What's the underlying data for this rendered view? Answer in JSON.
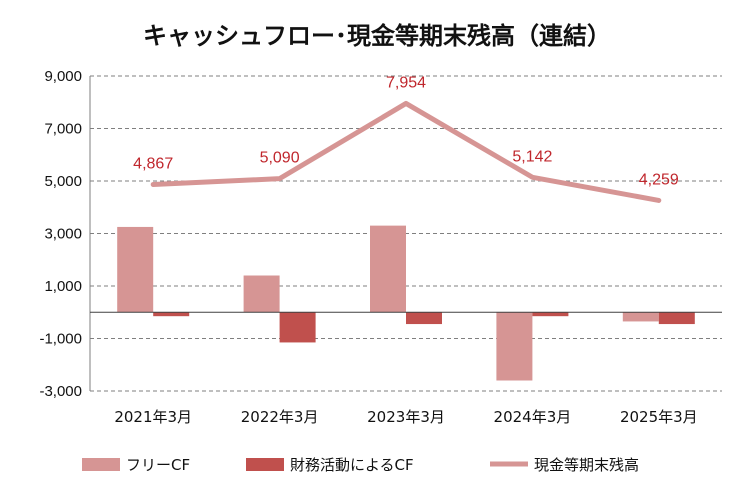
{
  "chart_data": {
    "type": "bar",
    "title": "キャッシュフロー･現金等期末残高（連結）",
    "categories": [
      "2021年3月",
      "2022年3月",
      "2023年3月",
      "2024年3月",
      "2025年3月"
    ],
    "series": [
      {
        "name": "フリーCF",
        "type": "bar",
        "color": "#d69594",
        "values": [
          3250,
          1400,
          3300,
          -2600,
          -350
        ]
      },
      {
        "name": "財務活動によるCF",
        "type": "bar",
        "color": "#c0504d",
        "values": [
          -150,
          -1150,
          -450,
          -150,
          -450
        ]
      },
      {
        "name": "現金等期末残高",
        "type": "line",
        "color": "#d69594",
        "values": [
          4867,
          5090,
          7954,
          5142,
          4259
        ]
      }
    ],
    "data_labels": [
      "4,867",
      "5,090",
      "7,954",
      "5,142",
      "4,259"
    ],
    "yticks": [
      "9,000",
      "7,000",
      "5,000",
      "3,000",
      "1,000",
      "-1,000",
      "-3,000"
    ],
    "ytick_values": [
      9000,
      7000,
      5000,
      3000,
      1000,
      -1000,
      -3000
    ],
    "ylim": [
      -3000,
      9000
    ],
    "grid": true,
    "legend": "bottom",
    "label_color": "#c0272d"
  }
}
